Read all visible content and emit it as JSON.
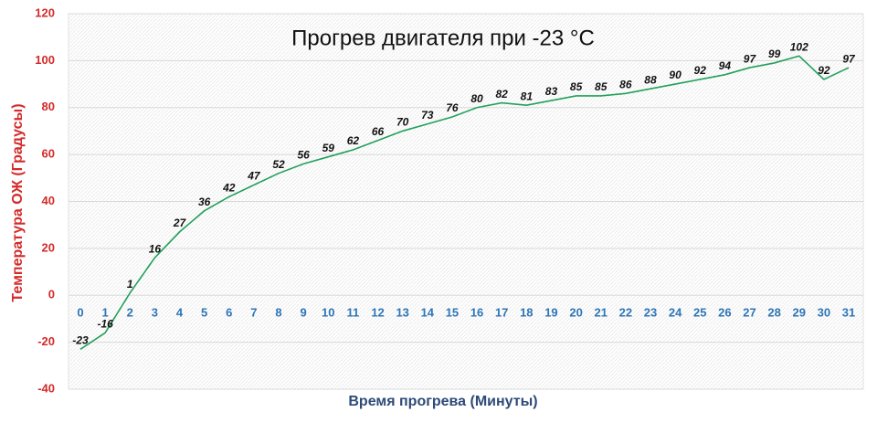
{
  "chart_data": {
    "type": "line",
    "title": "Прогрев двигателя при -23 °C",
    "x_label": "Время прогрева (Минуты)",
    "y_label": "Температура ОЖ (Градусы)",
    "x": [
      0,
      1,
      2,
      3,
      4,
      5,
      6,
      7,
      8,
      9,
      10,
      11,
      12,
      13,
      14,
      15,
      16,
      17,
      18,
      19,
      20,
      21,
      22,
      23,
      24,
      25,
      26,
      27,
      28,
      29,
      30,
      31
    ],
    "xlim": [
      0,
      31
    ],
    "series": [
      {
        "color": "#22a05a",
        "values": [
          -23,
          -16,
          1,
          16,
          27,
          36,
          42,
          47,
          52,
          56,
          59,
          62,
          66,
          70,
          73,
          76,
          80,
          82,
          81,
          83,
          85,
          85,
          86,
          88,
          90,
          92,
          94,
          97,
          99,
          102,
          92,
          97
        ]
      }
    ],
    "ylim": [
      -40,
      120
    ],
    "yticks": [
      -40,
      -20,
      0,
      20,
      40,
      60,
      80,
      100,
      120
    ],
    "grid": true
  }
}
